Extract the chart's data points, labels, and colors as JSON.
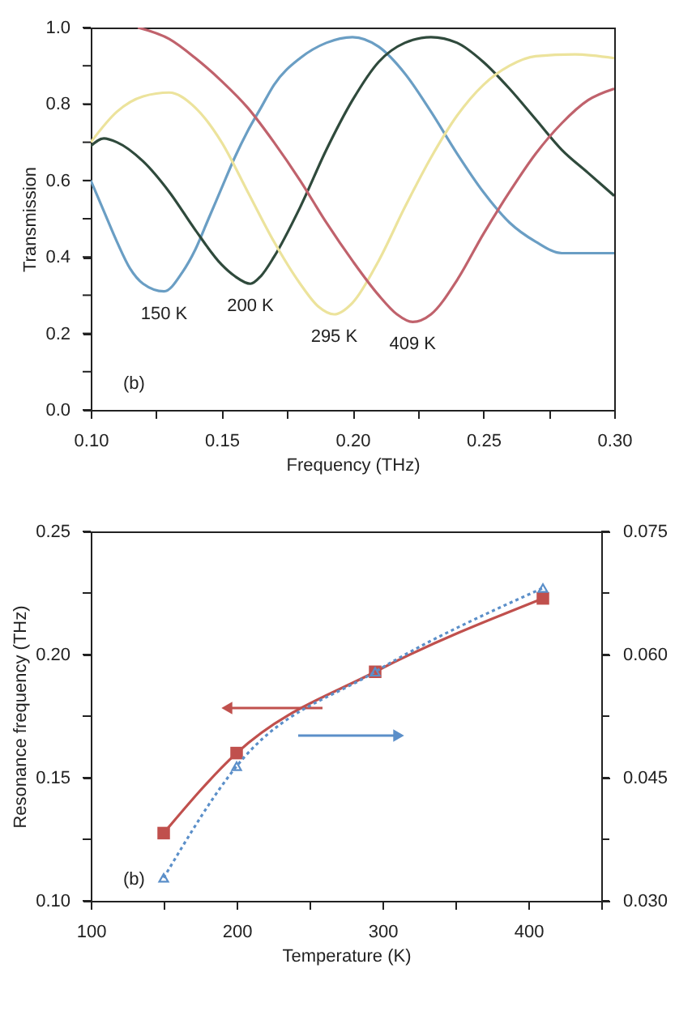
{
  "chart_data": [
    {
      "type": "line",
      "xlabel": "Frequency (THz)",
      "ylabel": "Transmission",
      "xlim": [
        0.1,
        0.3
      ],
      "ylim": [
        0,
        1.0
      ],
      "xticks": [
        {
          "value": 0.1,
          "label": "0.10"
        },
        {
          "value": 0.125,
          "label": null
        },
        {
          "value": 0.15,
          "label": "0.15"
        },
        {
          "value": 0.175,
          "label": null
        },
        {
          "value": 0.2,
          "label": "0.20"
        },
        {
          "value": 0.225,
          "label": null
        },
        {
          "value": 0.25,
          "label": "0.25"
        },
        {
          "value": 0.275,
          "label": null
        },
        {
          "value": 0.3,
          "label": "0.30"
        }
      ],
      "yticks": [
        {
          "value": 0,
          "label": "0.0"
        },
        {
          "value": 0.1,
          "label": null
        },
        {
          "value": 0.2,
          "label": "0.2"
        },
        {
          "value": 0.3,
          "label": null
        },
        {
          "value": 0.4,
          "label": "0.4"
        },
        {
          "value": 0.5,
          "label": null
        },
        {
          "value": 0.6,
          "label": "0.6"
        },
        {
          "value": 0.7,
          "label": null
        },
        {
          "value": 0.8,
          "label": "0.8"
        },
        {
          "value": 0.9,
          "label": null
        },
        {
          "value": 1.0,
          "label": "1.0"
        }
      ],
      "grid": false,
      "legend": false,
      "marker": "none",
      "line_style": "solid",
      "series": [
        {
          "color": "#6a9ec4",
          "x": [
            0.1,
            0.105,
            0.11,
            0.115,
            0.12,
            0.128,
            0.135,
            0.14,
            0.145,
            0.15,
            0.155,
            0.16,
            0.165,
            0.17,
            0.18,
            0.19,
            0.2,
            0.21,
            0.22,
            0.23,
            0.24,
            0.25,
            0.26,
            0.27,
            0.28,
            0.29,
            0.3
          ],
          "values": [
            0.6,
            0.52,
            0.44,
            0.37,
            0.33,
            0.31,
            0.36,
            0.42,
            0.5,
            0.58,
            0.66,
            0.73,
            0.79,
            0.85,
            0.92,
            0.96,
            0.975,
            0.95,
            0.88,
            0.78,
            0.67,
            0.57,
            0.49,
            0.44,
            0.41,
            0.41,
            0.41
          ]
        },
        {
          "color": "#2f4a3c",
          "x": [
            0.1,
            0.105,
            0.11,
            0.12,
            0.13,
            0.14,
            0.15,
            0.155,
            0.161,
            0.165,
            0.17,
            0.18,
            0.19,
            0.2,
            0.21,
            0.22,
            0.23,
            0.24,
            0.25,
            0.26,
            0.27,
            0.28,
            0.29,
            0.3
          ],
          "values": [
            0.69,
            0.71,
            0.7,
            0.65,
            0.57,
            0.47,
            0.38,
            0.35,
            0.33,
            0.35,
            0.4,
            0.53,
            0.68,
            0.81,
            0.91,
            0.96,
            0.975,
            0.96,
            0.91,
            0.84,
            0.76,
            0.68,
            0.62,
            0.56
          ]
        },
        {
          "color": "#ece39c",
          "x": [
            0.1,
            0.11,
            0.12,
            0.13,
            0.14,
            0.15,
            0.16,
            0.17,
            0.18,
            0.187,
            0.193,
            0.2,
            0.21,
            0.22,
            0.23,
            0.24,
            0.25,
            0.26,
            0.27,
            0.285,
            0.3
          ],
          "values": [
            0.7,
            0.78,
            0.82,
            0.83,
            0.79,
            0.7,
            0.57,
            0.44,
            0.33,
            0.27,
            0.25,
            0.28,
            0.39,
            0.53,
            0.66,
            0.77,
            0.85,
            0.9,
            0.925,
            0.93,
            0.92
          ]
        },
        {
          "color": "#c0626c",
          "x": [
            0.118,
            0.13,
            0.14,
            0.15,
            0.16,
            0.17,
            0.18,
            0.19,
            0.2,
            0.21,
            0.217,
            0.223,
            0.23,
            0.24,
            0.25,
            0.26,
            0.27,
            0.28,
            0.29,
            0.3
          ],
          "values": [
            1.0,
            0.97,
            0.92,
            0.86,
            0.79,
            0.7,
            0.6,
            0.49,
            0.39,
            0.3,
            0.25,
            0.23,
            0.25,
            0.34,
            0.46,
            0.57,
            0.67,
            0.75,
            0.81,
            0.84
          ]
        }
      ],
      "annotations": [
        {
          "text": "150 K",
          "x": 0.128,
          "y": 0.31
        },
        {
          "text": "200 K",
          "x": 0.161,
          "y": 0.33
        },
        {
          "text": "295 K",
          "x": 0.193,
          "y": 0.25
        },
        {
          "text": "409 K",
          "x": 0.223,
          "y": 0.23
        },
        "(b)"
      ]
    },
    {
      "type": "line",
      "xlabel": "Temperature (K)",
      "ylabel": "Resonance frequency (THz)",
      "xlim": [
        100,
        450
      ],
      "ylim": [
        0.1,
        0.25
      ],
      "y2lim": [
        0.03,
        0.075
      ],
      "xticks": [
        100,
        {
          "value": 150,
          "label": null
        },
        200,
        {
          "value": 250,
          "label": null
        },
        300,
        {
          "value": 350,
          "label": null
        },
        400,
        {
          "value": 450,
          "label": null
        }
      ],
      "yticks": [
        {
          "value": 0.1,
          "label": "0.10"
        },
        {
          "value": 0.125,
          "label": null
        },
        0.15,
        {
          "value": 0.175,
          "label": null
        },
        {
          "value": 0.2,
          "label": "0.20"
        },
        {
          "value": 0.225,
          "label": null
        },
        0.25
      ],
      "y2ticks": [
        {
          "value": 0.03,
          "label": "0.030"
        },
        {
          "value": 0.0375,
          "label": null
        },
        0.045,
        {
          "value": 0.0525,
          "label": null
        },
        {
          "value": 0.06,
          "label": "0.060"
        },
        {
          "value": 0.0675,
          "label": null
        },
        0.075
      ],
      "grid": false,
      "legend": false,
      "series": [
        {
          "color": "#c0504d",
          "marker": "square",
          "line_style": "solid",
          "x": [
            150,
            200,
            295,
            410
          ],
          "values": [
            0.1275,
            0.16,
            0.193,
            0.2228
          ]
        },
        {
          "color": "#5b8fc9",
          "marker": "triangle",
          "line_style": "dotted",
          "axis": "y2",
          "x": [
            150,
            200,
            295,
            410
          ],
          "values": [
            0.0328,
            0.0464,
            0.0579,
            0.0681
          ]
        }
      ],
      "annotations": [
        "(b)"
      ]
    }
  ]
}
